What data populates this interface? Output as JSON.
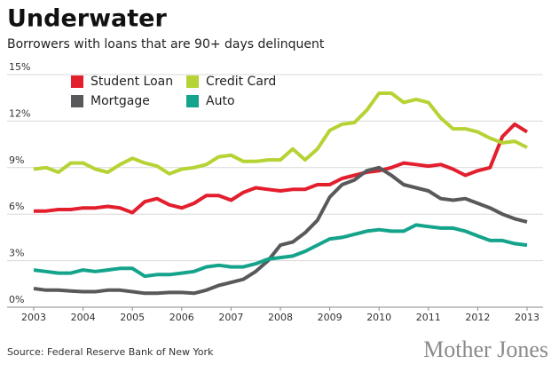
{
  "chart_data": {
    "type": "line",
    "title": "Underwater",
    "subtitle": "Borrowers with loans that are 90+ days delinquent",
    "source": "Source: Federal Reserve Bank of New York",
    "brand": "Mother Jones",
    "x": [
      2003,
      2003.25,
      2003.5,
      2003.75,
      2004,
      2004.25,
      2004.5,
      2004.75,
      2005,
      2005.25,
      2005.5,
      2005.75,
      2006,
      2006.25,
      2006.5,
      2006.75,
      2007,
      2007.25,
      2007.5,
      2007.75,
      2008,
      2008.25,
      2008.5,
      2008.75,
      2009,
      2009.25,
      2009.5,
      2009.75,
      2010,
      2010.25,
      2010.5,
      2010.75,
      2011,
      2011.25,
      2011.5,
      2011.75,
      2012,
      2012.25,
      2012.5,
      2012.75,
      2013
    ],
    "series": [
      {
        "name": "Student Loan",
        "color": "#e31e2d",
        "values": [
          6.2,
          6.2,
          6.3,
          6.3,
          6.4,
          6.4,
          6.5,
          6.4,
          6.1,
          6.8,
          7.0,
          6.6,
          6.4,
          6.7,
          7.2,
          7.2,
          6.9,
          7.4,
          7.7,
          7.6,
          7.5,
          7.6,
          7.6,
          7.9,
          7.9,
          8.3,
          8.5,
          8.7,
          8.8,
          9.0,
          9.3,
          9.2,
          9.1,
          9.2,
          8.9,
          8.5,
          8.8,
          9.0,
          11.0,
          11.8,
          11.3
        ]
      },
      {
        "name": "Credit Card",
        "color": "#b5d334",
        "values": [
          8.9,
          9.0,
          8.7,
          9.3,
          9.3,
          8.9,
          8.7,
          9.2,
          9.6,
          9.3,
          9.1,
          8.6,
          8.9,
          9.0,
          9.2,
          9.7,
          9.8,
          9.4,
          9.4,
          9.5,
          9.5,
          10.2,
          9.5,
          10.2,
          11.4,
          11.8,
          11.9,
          12.7,
          13.8,
          13.8,
          13.2,
          13.4,
          13.2,
          12.2,
          11.5,
          11.5,
          11.3,
          10.9,
          10.6,
          10.7,
          10.3
        ]
      },
      {
        "name": "Mortgage",
        "color": "#58595b",
        "values": [
          1.2,
          1.1,
          1.1,
          1.05,
          1.0,
          1.0,
          1.1,
          1.1,
          1.0,
          0.9,
          0.9,
          0.95,
          0.95,
          0.9,
          1.1,
          1.4,
          1.6,
          1.8,
          2.3,
          3.0,
          4.0,
          4.2,
          4.8,
          5.6,
          7.1,
          7.9,
          8.2,
          8.8,
          9.0,
          8.5,
          7.9,
          7.7,
          7.5,
          7.0,
          6.9,
          7.0,
          6.7,
          6.4,
          6.0,
          5.7,
          5.5
        ]
      },
      {
        "name": "Auto",
        "color": "#14a38b",
        "values": [
          2.4,
          2.3,
          2.2,
          2.2,
          2.4,
          2.3,
          2.4,
          2.5,
          2.5,
          2.0,
          2.1,
          2.1,
          2.2,
          2.3,
          2.6,
          2.7,
          2.6,
          2.6,
          2.8,
          3.1,
          3.2,
          3.3,
          3.6,
          4.0,
          4.4,
          4.5,
          4.7,
          4.9,
          5.0,
          4.9,
          4.9,
          5.3,
          5.2,
          5.1,
          5.1,
          4.9,
          4.6,
          4.3,
          4.3,
          4.1,
          4.0
        ]
      }
    ],
    "xlim": [
      2003,
      2013
    ],
    "xticks": [
      2003,
      2004,
      2005,
      2006,
      2007,
      2008,
      2009,
      2010,
      2011,
      2012,
      2013
    ],
    "ylim": [
      0,
      15
    ],
    "yticks": [
      {
        "value": 0,
        "label": "0%"
      },
      {
        "value": 3,
        "label": "3%"
      },
      {
        "value": 6,
        "label": "6%"
      },
      {
        "value": 9,
        "label": "9%"
      },
      {
        "value": 12,
        "label": "12%"
      },
      {
        "value": 15,
        "label": "15%"
      }
    ],
    "grid": true
  }
}
